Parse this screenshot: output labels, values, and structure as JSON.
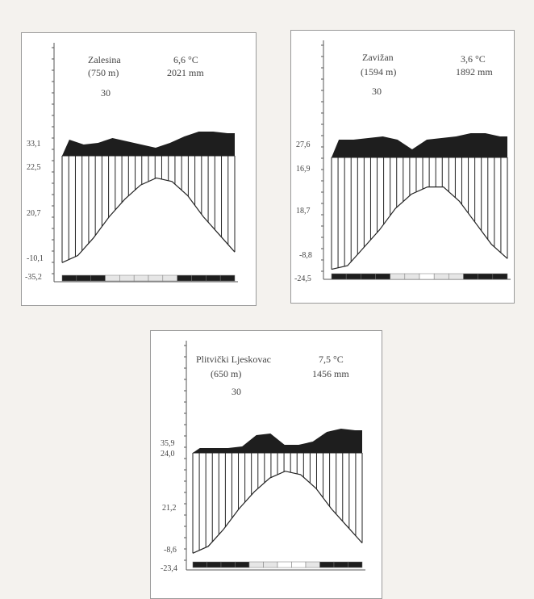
{
  "chart_data": [
    {
      "type": "climate-diagram",
      "station": "Zalesina",
      "elevation": "(750 m)",
      "mean_temp": "6,6 °C",
      "precipitation": "2021 mm",
      "years": "30",
      "scale_labels": [
        "33,1",
        "22,5",
        "20,7",
        "-10,1",
        "-35,2"
      ],
      "temperature_curve": [
        -8,
        -6,
        -1,
        5,
        10,
        14,
        16,
        15,
        11,
        5,
        0,
        -5
      ],
      "precip_top": [
        95,
        92,
        93,
        96,
        94,
        92,
        90,
        93,
        97,
        100,
        100,
        99
      ],
      "frost_months": [
        "sure",
        "sure",
        "sure",
        "prob",
        "prob",
        "prob",
        "prob",
        "prob",
        "sure",
        "sure",
        "sure",
        "sure"
      ]
    },
    {
      "type": "climate-diagram",
      "station": "Zavižan",
      "elevation": "(1594 m)",
      "mean_temp": "3,6 °C",
      "precipitation": "1892 mm",
      "years": "30",
      "scale_labels": [
        "27,6",
        "16,9",
        "18,7",
        "-8,8",
        "-24,5"
      ],
      "temperature_curve": [
        -9,
        -8,
        -3,
        2,
        8,
        12,
        14,
        14,
        10,
        4,
        -2,
        -6
      ],
      "precip_top": [
        96,
        96,
        97,
        98,
        96,
        90,
        96,
        97,
        98,
        100,
        100,
        98
      ],
      "frost_months": [
        "sure",
        "sure",
        "sure",
        "sure",
        "prob",
        "prob",
        "none",
        "prob",
        "prob",
        "sure",
        "sure",
        "sure"
      ]
    },
    {
      "type": "climate-diagram",
      "station": "Plitvički Ljeskovac",
      "elevation": "(650 m)",
      "mean_temp": "7,5 °C",
      "precipitation": "1456 mm",
      "years": "30",
      "scale_labels": [
        "35,9",
        "24,0",
        "21,2",
        "-8,6",
        "-23,4"
      ],
      "temperature_curve": [
        -7,
        -5,
        0,
        6,
        11,
        15,
        17,
        16,
        12,
        6,
        1,
        -4
      ],
      "precip_top": [
        88,
        88,
        88,
        89,
        96,
        97,
        90,
        90,
        92,
        98,
        100,
        99
      ],
      "frost_months": [
        "sure",
        "sure",
        "sure",
        "sure",
        "prob",
        "prob",
        "none",
        "none",
        "prob",
        "sure",
        "sure",
        "sure"
      ]
    }
  ]
}
